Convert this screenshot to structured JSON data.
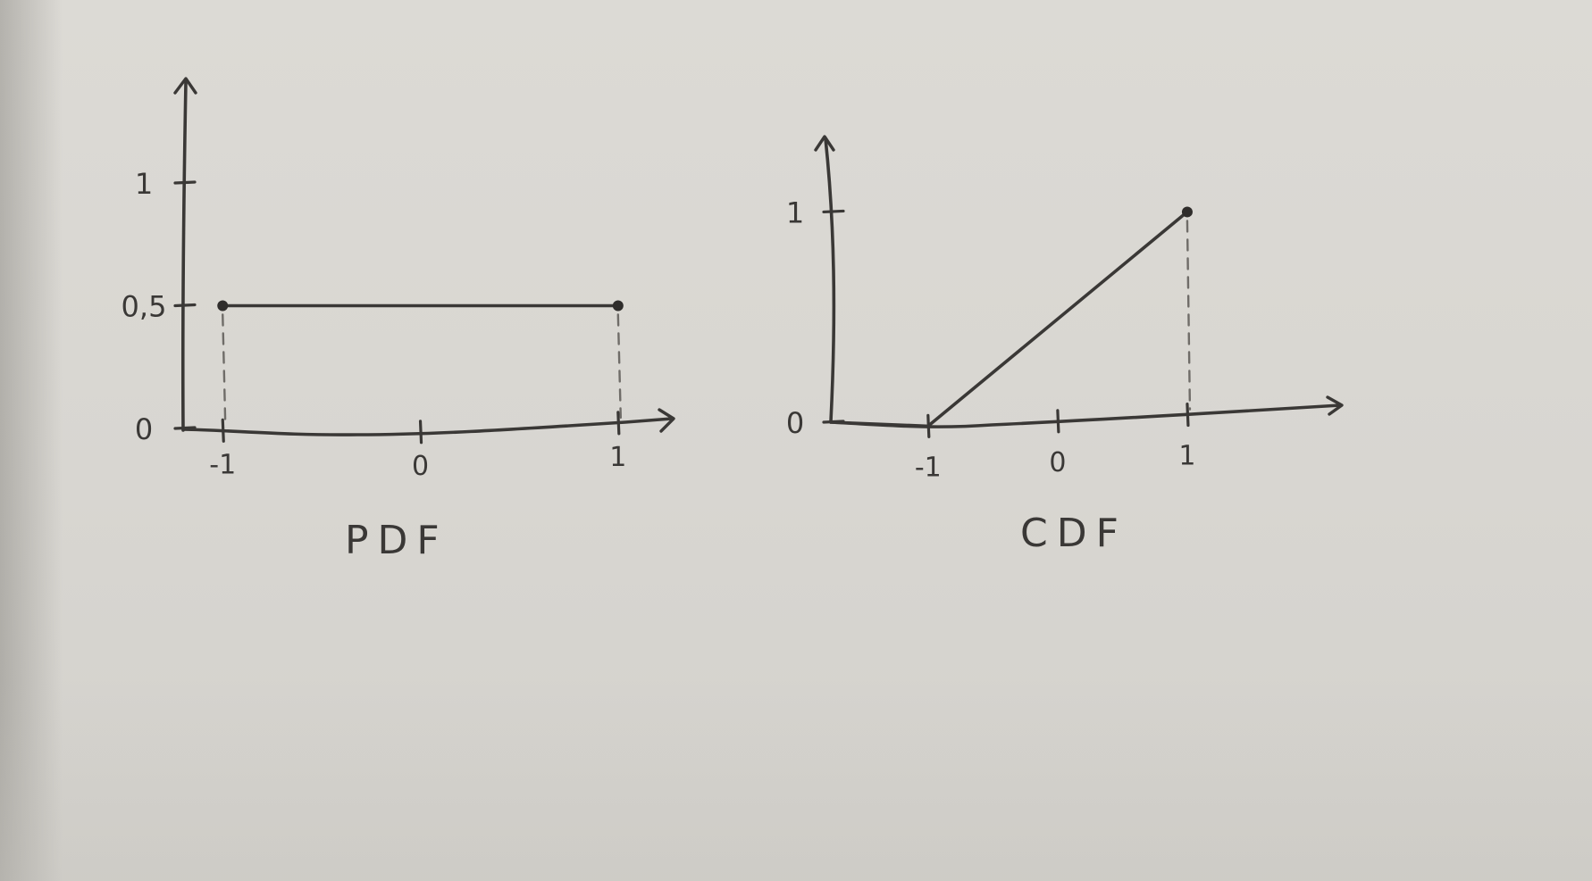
{
  "chart_data": [
    {
      "type": "line",
      "title": "PDF",
      "x_ticks": [
        "-1",
        "0",
        "1"
      ],
      "y_ticks": [
        "0",
        "0,5",
        "1"
      ],
      "xlim": [
        -1.2,
        1.15
      ],
      "ylim": [
        0,
        1.4
      ],
      "series": [
        {
          "x": [
            -1,
            1
          ],
          "y": [
            0.5,
            0.5
          ]
        }
      ],
      "guides": [
        -1,
        1
      ],
      "endpoints": [
        {
          "x": -1,
          "y": 0.5
        },
        {
          "x": 1,
          "y": 0.5
        }
      ]
    },
    {
      "type": "line",
      "title": "CDF",
      "x_ticks": [
        "-1",
        "0",
        "1"
      ],
      "y_ticks": [
        "0",
        "1"
      ],
      "xlim": [
        -1.75,
        1.8
      ],
      "ylim": [
        0,
        1.35
      ],
      "series": [
        {
          "x": [
            -1.75,
            -1,
            1
          ],
          "y": [
            0,
            0,
            1
          ]
        }
      ],
      "guides": [
        1
      ],
      "endpoints": [
        {
          "x": 1,
          "y": 1
        }
      ]
    }
  ]
}
